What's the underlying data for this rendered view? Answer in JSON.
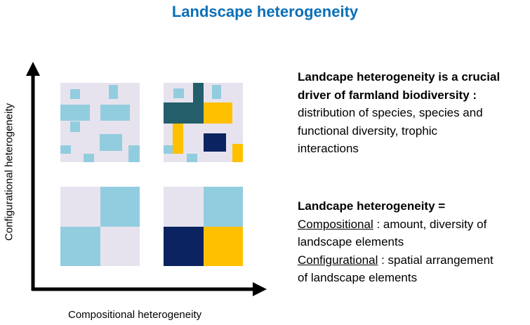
{
  "title": "Landscape heterogeneity",
  "axes": {
    "y_label": "Configurational heterogeneity",
    "x_label": "Compositional heterogeneity"
  },
  "colors": {
    "title": "#0a6fb7",
    "background_cell": "#e7e3ee",
    "light_blue": "#92cddf",
    "dark_teal": "#245e6b",
    "gold": "#ffc000",
    "navy": "#0b2461"
  },
  "block1": {
    "heading_line1": "Landcape heterogeneity is a crucial",
    "heading_line2": "driver of farmland biodiversity :",
    "body_line1": "distribution of species, species and",
    "body_line2": "functional diversity, trophic",
    "body_line3": "interactions"
  },
  "block2": {
    "heading": "Landcape heterogeneity =",
    "comp_term": "Compositional",
    "comp_rest": " : amount, diversity of",
    "comp_line2": "landscape elements",
    "config_term": "Configurational",
    "config_rest": " : spatial arrangement",
    "config_line2": "of landscape elements"
  }
}
